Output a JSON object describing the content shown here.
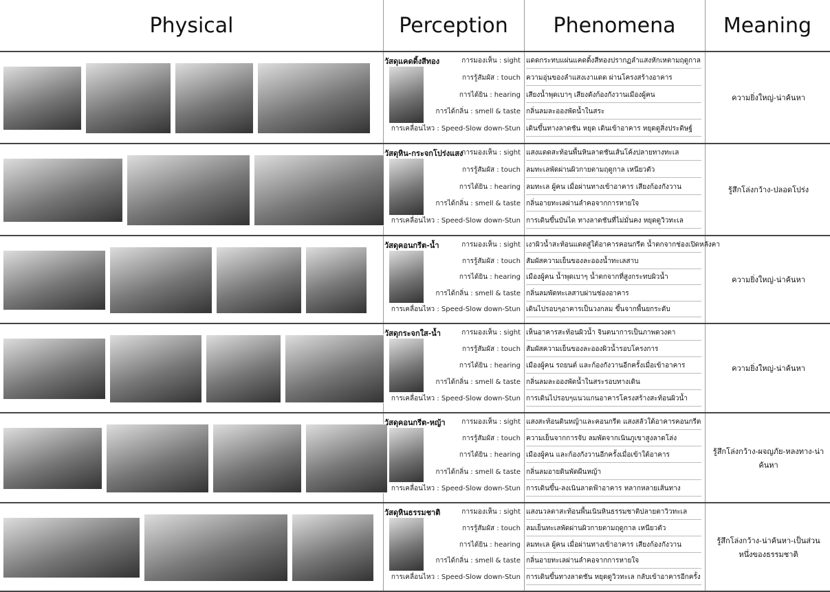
{
  "header": {
    "columns": [
      "Physical",
      "Perception",
      "Phenomena",
      "Meaning"
    ]
  },
  "rows": [
    {
      "material": "วัสดุแคดดิ้งสีทอง",
      "lines": [
        {
          "sense": "การมองเห็น : sight",
          "phenomenon": "แดดกระทบแผ่นแคดดิ้งสีทองปรากฏลำแสงหักเหตามฤดูกาล"
        },
        {
          "sense": "การรู้สัมผัส : touch",
          "phenomenon": "ความอุ่นของลำแสงเงาแดด ผ่านโครงสร้างอาคาร"
        },
        {
          "sense": "การได้ยิน : hearing",
          "phenomenon": "เสียงน้ำพุดเบาๆ เสียงดังก้องกังวานเมืองผู้คน"
        },
        {
          "sense": "การได้กลิ่น : smell & taste",
          "phenomenon": "กลิ่นลมละอองพัดน้ำในสระ"
        },
        {
          "sense": "การเคลื่อนไหว : Speed-Slow down-Stun",
          "phenomenon": "เดินขึ้นทางลาดชัน หยุด เดินเข้าอาคาร หยุดดูสิ่งประดิษฐ์"
        }
      ],
      "meaning": "ความยิ่งใหญ่-น่าค้นหา"
    },
    {
      "material": "วัสดุหิน-กระจกโปร่งแสง",
      "lines": [
        {
          "sense": "การมองเห็น : sight",
          "phenomenon": "แสงแดดสะท้อนพื้นหินลาดชันเส้นโค้งปลายทางทะเล"
        },
        {
          "sense": "การรู้สัมผัส : touch",
          "phenomenon": "ลมทะเลพัดผ่านผิวกายตามฤดูกาล เหนียวตัว"
        },
        {
          "sense": "การได้ยิน : hearing",
          "phenomenon": "ลมทะเล ผู้คน เมื่อผ่านทางเข้าอาคาร เสียงก้องกังวาน"
        },
        {
          "sense": "การได้กลิ่น : smell & taste",
          "phenomenon": "กลิ่นอายทะเลผ่านลำคอจากการหายใจ"
        },
        {
          "sense": "การเคลื่อนไหว : Speed-Slow down-Stun",
          "phenomenon": "การเดินขึ้นบันได ทางลาดชันที่ไม่มั่นคง หยุดดูวิวทะเล"
        }
      ],
      "meaning": "รู้สึกโล่งกว้าง-ปลอดโปร่ง"
    },
    {
      "material": "วัสดุคอนกรีต-น้ำ",
      "lines": [
        {
          "sense": "การมองเห็น : sight",
          "phenomenon": "เงาผิวน้ำสะท้อนแดดสู่ใต้อาคารคอนกรีต น้ำตกจากช่องเปิดหลังคา"
        },
        {
          "sense": "การรู้สัมผัส : touch",
          "phenomenon": "สัมผัสความเย็นของละอองน้ำทะเลสาบ"
        },
        {
          "sense": "การได้ยิน : hearing",
          "phenomenon": "เมืองผู้คน น้ำพุดเบาๆ น้ำตกจากที่สูงกระทบผิวน้ำ"
        },
        {
          "sense": "การได้กลิ่น : smell & taste",
          "phenomenon": "กลิ่นลมพัดทะเลสาบผ่านช่องอาคาร"
        },
        {
          "sense": "การเคลื่อนไหว : Speed-Slow down-Stun",
          "phenomenon": "เดินไปรอบๆอาคารเป็นวงกลม ขึ้นจากพื้นยกระดับ"
        }
      ],
      "meaning": "ความยิ่งใหญ่-น่าค้นหา"
    },
    {
      "material": "วัสดุกระจกใส-น้ำ",
      "lines": [
        {
          "sense": "การมองเห็น : sight",
          "phenomenon": "เห็นอาคารสะท้อนผิวน้ำ จินตนาการเป็นภาพดวงตา"
        },
        {
          "sense": "การรู้สัมผัส : touch",
          "phenomenon": "สัมผัสความเย็นของละอองผิวน้ำรอบโครงการ"
        },
        {
          "sense": "การได้ยิน : hearing",
          "phenomenon": "เมืองผู้คน รถยนต์ และก้องกังวานอีกครั้งเมื่อเข้าอาคาร"
        },
        {
          "sense": "การได้กลิ่น : smell & taste",
          "phenomenon": "กลิ่นลมละอองพัดน้ำในสระรอบทางเดิน"
        },
        {
          "sense": "การเคลื่อนไหว : Speed-Slow down-Stun",
          "phenomenon": "การเดินไปรอบๆแนวแกนอาคารโครงสร้างสะท้อนผิวน้ำ"
        }
      ],
      "meaning": "ความยิ่งใหญ่-น่าค้นหา"
    },
    {
      "material": "วัสดุคอนกรีต-หญ้า",
      "lines": [
        {
          "sense": "การมองเห็น : sight",
          "phenomenon": "แสงสะท้อนดินหญ้าและคอนกรีต แสงสลัวใต้อาคารคอนกรีต"
        },
        {
          "sense": "การรู้สัมผัส : touch",
          "phenomenon": "ความเย็นจากการจับ ลมพัดจากเนินภูเขาสูงลาดโล่ง"
        },
        {
          "sense": "การได้ยิน : hearing",
          "phenomenon": "เมืองผู้คน และก้องกังวานอีกครั้งเมื่อเข้าใต้อาคาร"
        },
        {
          "sense": "การได้กลิ่น : smell & taste",
          "phenomenon": "กลิ่นลมอายดินพัดผืนหญ้า"
        },
        {
          "sense": "การเคลื่อนไหว : Speed-Slow down-Stun",
          "phenomenon": "การเดินขึ้น-ลงเนินลาดฟ้าอาคาร หลากหลายเส้นทาง"
        }
      ],
      "meaning": "รู้สึกโล่งกว้าง-ผจญภัย-หลงทาง-น่าค้นหา"
    },
    {
      "material": "วัสดุหินธรรมชาติ",
      "lines": [
        {
          "sense": "การมองเห็น : sight",
          "phenomenon": "แสงนวลตาสะท้อนพื้นเนินหินธรรมชาติปลายตาวิวทะเล"
        },
        {
          "sense": "การรู้สัมผัส : touch",
          "phenomenon": "ลมเย็นทะเลพัดผ่านผิวกายตามฤดูกาล เหนียวตัว"
        },
        {
          "sense": "การได้ยิน : hearing",
          "phenomenon": "ลมทะเล ผู้คน เมื่อผ่านทางเข้าอาคาร เสียงก้องกังวาน"
        },
        {
          "sense": "การได้กลิ่น : smell & taste",
          "phenomenon": "กลิ่นอายทะเลผ่านลำคอจากการหายใจ"
        },
        {
          "sense": "การเคลื่อนไหว : Speed-Slow down-Stun",
          "phenomenon": "การเดินขึ้นทางลาดชัน หยุดดูวิวทะเล กลับเข้าอาคารอีกครั้ง"
        }
      ],
      "meaning": "รู้สึกโล่งกว้าง-น่าค้นหา-เป็นส่วนหนึ่งของธรรมชาติ"
    }
  ]
}
